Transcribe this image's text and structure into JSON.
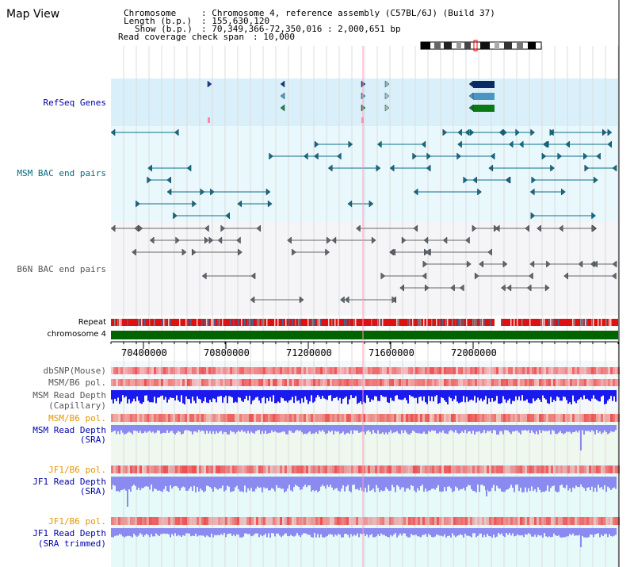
{
  "page": {
    "title": "Map View"
  },
  "header": {
    "chromosome_key": "Chromosome",
    "chromosome_val": ": Chromosome 4, reference assembly (C57BL/6J) (Build 37)",
    "length_key": "Length (b.p.)",
    "length_val": ": 155,630,120",
    "show_key": "Show (b.p.)",
    "show_val": ": 70,349,366-72,350,016 : 2,000,651 bp",
    "coverage_key": "Read coverage check span",
    "coverage_val": ": 10,000"
  },
  "tracks": {
    "refseq": "RefSeq Genes",
    "msm_bac": "MSM BAC end pairs",
    "b6n_bac": "B6N BAC end pairs",
    "repeat": "Repeat",
    "chromosome": "chromosome 4",
    "dbsnp": "dbSNP(Mouse)",
    "msm_b6_pol_1": "MSM/B6 pol.",
    "msm_read_depth_cap_1": "MSM Read Depth",
    "msm_read_depth_cap_2": "(Capillary)",
    "msm_b6_pol_2": "MSM/B6 pol.",
    "msm_read_depth_sra_1": "MSM Read Depth",
    "msm_read_depth_sra_2": "(SRA)",
    "jf1_b6_pol_1": "JF1/B6 pol.",
    "jf1_read_depth_sra_1": "JF1 Read Depth",
    "jf1_read_depth_sra_2": "(SRA)",
    "jf1_b6_pol_2": "JF1/B6 pol.",
    "jf1_read_depth_trim_1": "JF1 Read Depth",
    "jf1_read_depth_trim_2": "(SRA trimmed)"
  },
  "axis": {
    "ticks": [
      "70400000",
      "70800000",
      "71200000",
      "71600000",
      "72000000"
    ]
  },
  "colors": {
    "refseq_bg": "#d9f0fa",
    "msm_bg": "#e8f8fc",
    "b6n_bg": "#f5f5f8",
    "chromosome_bar": "#006400",
    "msm_line": "#0e6e86",
    "b6n_line": "#666666",
    "depth_capillary": "#1a1aee",
    "depth_sra": "#8a8af0",
    "pol_red": "#ee3333"
  }
}
